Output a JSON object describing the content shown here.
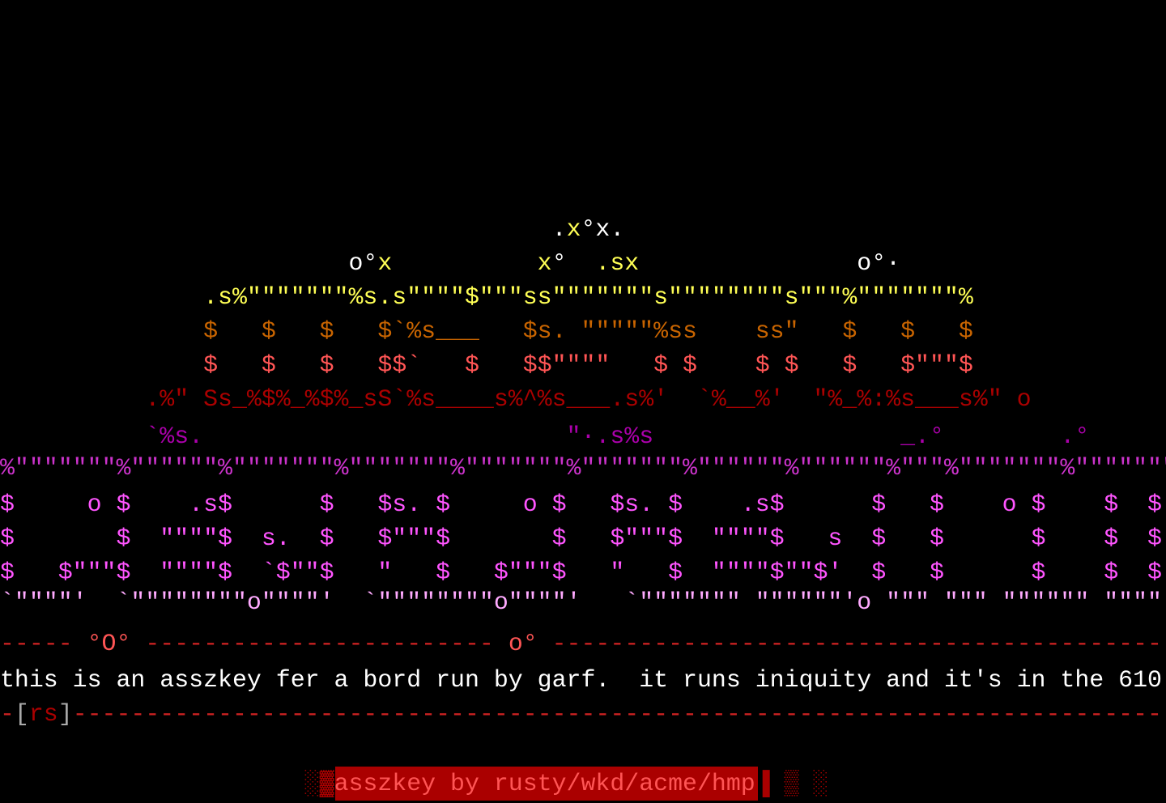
{
  "lines": [
    {
      "segments": [
        {
          "text": "                                      .",
          "color": "#ffffff"
        },
        {
          "text": "x",
          "color": "#ffff55"
        },
        {
          "text": "°x.",
          "color": "#ffffff"
        }
      ]
    },
    {
      "segments": [
        {
          "text": "                        o°",
          "color": "#ffffff"
        },
        {
          "text": "x",
          "color": "#ffff55"
        },
        {
          "text": "          x",
          "color": "#ffff55"
        },
        {
          "text": "°",
          "color": "#ffffff"
        },
        {
          "text": "  .sx",
          "color": "#ffff55"
        },
        {
          "text": "               o°·",
          "color": "#ffffff"
        }
      ]
    },
    {
      "segments": [
        {
          "text": "              .s%\"\"\"\"\"\"\"%s.s\"\"\"\"$\"\"\"ss\"\"\"\"\"\"\"s\"\"\"\"\"\"\"\"s\"\"\"%\"\"\"\"\"\"\"%",
          "color": "#ffff55"
        }
      ]
    },
    {
      "segments": [
        {
          "text": "              $   $   $   $`%s___   $s. \"\"\"\"\"%ss    ss\"   $   $   $",
          "color": "#c86400"
        }
      ]
    },
    {
      "segments": [
        {
          "text": "              $   $   $   $$`   $   $$\"\"\"\"   $ $    $ $   $   $\"\"\"$",
          "color": "#ff5555"
        }
      ]
    },
    {
      "segments": [
        {
          "text": "          .%\" Ss_%$%_%$%_sS`%s____s%^%s___.s%'  `%__%'  \"%_%:%s___s%\" o",
          "color": "#aa0000"
        }
      ]
    },
    {
      "segments": [
        {
          "text": "          `%s.                         \"·.s%s                 _.°        .°",
          "color": "#aa00aa"
        }
      ]
    },
    {
      "segments": [
        {
          "text": "%\"\"\"\"\"\"\"%\"\"\"\"\"\"%\"\"\"\"\"\"\"%\"\"\"\"\"\"\"%\"\"\"\"\"\"\"%\"\"\"\"\"\"\"%\"\"\"\"\"\"%\"\"\"\"\"\"%\"\"\"%\"\"\"\"\"\"\"%\"\"\"\"\"\"\"%",
          "color": "#cc33cc"
        }
      ]
    },
    {
      "segments": [
        {
          "text": "$     o $    .s$      $   $s. $     o $   $s. $    .s$      $   $    o $    $  $",
          "color": "#ff55ff"
        }
      ]
    },
    {
      "segments": [
        {
          "text": "$       $  \"\"\"\"$  s.  $   $\"\"\"$       $   $\"\"\"$  \"\"\"\"$   s  $   $      $    $  $",
          "color": "#ff55ff"
        }
      ]
    },
    {
      "segments": [
        {
          "text": "$   $\"\"\"$  \"\"\"\"$  `$\"\"$   \"   $   $\"\"\"$   \"   $  \"\"\"\"$\"\"$'  $   $      $    $  $",
          "color": "#ff55ff"
        }
      ]
    },
    {
      "segments": [
        {
          "text": "`\"\"\"\"'  `\"\"\"\"\"\"\"\"o\"\"\"\"'  `\"\"\"\"\"\"\"\"o\"\"\"\"'   `\"\"\"\"\"\"\" \"\"\"\"\"\"'o \"\"\" \"\"\" \"\"\"\"\"\" \"\"\"\" \"\"'",
          "color": "#ffaaff"
        }
      ]
    },
    {
      "segments": [
        {
          "text": "----- ",
          "color": "#cc2222"
        },
        {
          "text": "°O°",
          "color": "#ff5555"
        },
        {
          "text": " ------------------------ ",
          "color": "#cc2222"
        },
        {
          "text": "o°",
          "color": "#ff5555"
        },
        {
          "text": " ------------------------------------------",
          "color": "#cc2222"
        }
      ]
    },
    {
      "segments": [
        {
          "text": "this is an asszkey fer a bord run by garf.  it runs iniquity and it's in the 610",
          "color": "#ffffff"
        }
      ]
    },
    {
      "segments": [
        {
          "text": "-",
          "color": "#cc2222"
        },
        {
          "text": "[",
          "color": "#aaaaaa"
        },
        {
          "text": "rs",
          "color": "#aa0000"
        },
        {
          "text": "]",
          "color": "#aaaaaa"
        },
        {
          "text": "---------------------------------------------------------------------------",
          "color": "#cc2222"
        }
      ]
    },
    {
      "segments": [
        {
          "text": "                     ░▓",
          "color": "#aa0000"
        },
        {
          "text": "asszkey by rusty/wkd/acme/hmp",
          "color": "#ff5555",
          "background": "#aa0000"
        },
        {
          "text": "▐ ▒ ░",
          "color": "#aa0000"
        }
      ]
    }
  ]
}
